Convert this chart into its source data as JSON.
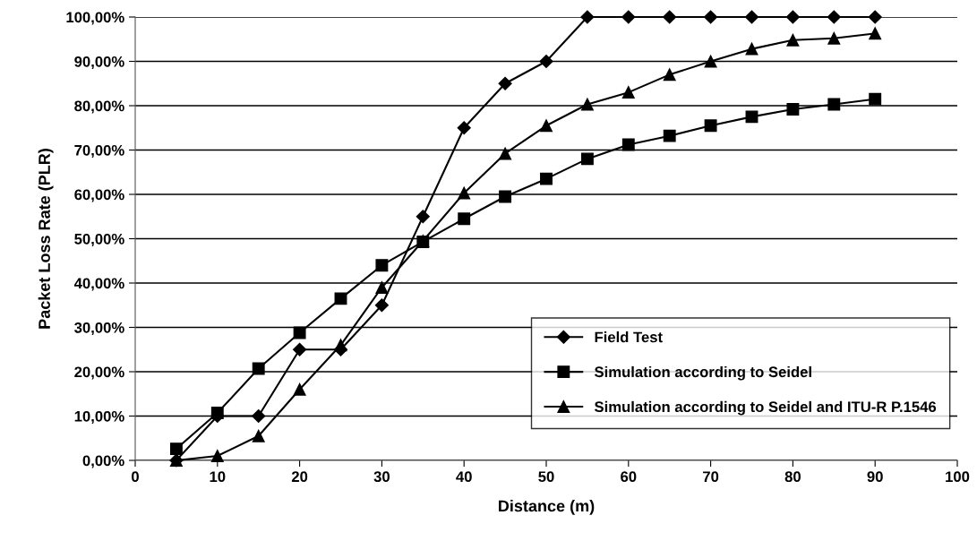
{
  "chart_data": {
    "type": "line",
    "xlabel": "Distance (m)",
    "ylabel": "Packet Loss Rate (PLR)",
    "x": [
      5,
      10,
      15,
      20,
      25,
      30,
      35,
      40,
      45,
      50,
      55,
      60,
      65,
      70,
      75,
      80,
      85,
      90
    ],
    "series": [
      {
        "name": "Field Test",
        "color": "#000000",
        "marker": "diamond",
        "values": [
          0,
          10,
          10,
          25,
          25,
          35,
          55,
          75,
          85,
          90,
          100,
          100,
          100,
          100,
          100,
          100,
          100,
          100
        ]
      },
      {
        "name": "Simulation according to Seidel",
        "color": "#000000",
        "marker": "square",
        "values": [
          2.6,
          10.7,
          20.7,
          28.8,
          36.5,
          44,
          49.3,
          54.5,
          59.5,
          63.5,
          68,
          71.2,
          73.2,
          75.5,
          77.5,
          79.2,
          80.3,
          81.5
        ]
      },
      {
        "name": "Simulation according to Seidel and ITU-R P.1546",
        "color": "#000000",
        "marker": "triangle",
        "values": [
          0,
          1,
          5.5,
          16,
          26,
          39,
          49.5,
          60.3,
          69.2,
          75.5,
          80.3,
          83,
          87,
          90,
          92.8,
          94.8,
          95.2,
          96.3
        ]
      }
    ],
    "xlim": [
      0,
      100
    ],
    "xticks": [
      0,
      10,
      20,
      30,
      40,
      50,
      60,
      70,
      80,
      90,
      100
    ],
    "ylim": [
      0,
      100
    ],
    "yticks": [
      {
        "value": 0,
        "label": "0,00%"
      },
      {
        "value": 10,
        "label": "10,00%"
      },
      {
        "value": 20,
        "label": "20,00%"
      },
      {
        "value": 30,
        "label": "30,00%"
      },
      {
        "value": 40,
        "label": "40,00%"
      },
      {
        "value": 50,
        "label": "50,00%"
      },
      {
        "value": 60,
        "label": "60,00%"
      },
      {
        "value": 70,
        "label": "70,00%"
      },
      {
        "value": 80,
        "label": "80,00%"
      },
      {
        "value": 90,
        "label": "90,00%"
      },
      {
        "value": 100,
        "label": "100,00%"
      }
    ],
    "grid": "y",
    "legend": "bottom right",
    "line_style": "solid"
  }
}
